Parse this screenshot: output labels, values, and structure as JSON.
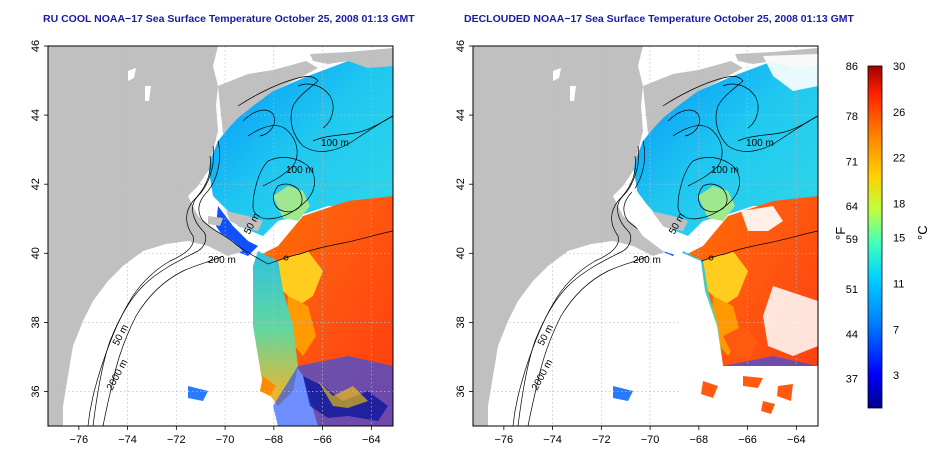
{
  "panels": [
    {
      "title": "RU COOL NOAA−17 Sea Surface Temperature October 25, 2008 01:13 GMT",
      "x_ticks": [
        "−76",
        "−74",
        "−72",
        "−70",
        "−68",
        "−66",
        "−64"
      ],
      "y_ticks": [
        "46",
        "44",
        "42",
        "40",
        "38",
        "36"
      ],
      "labels": {
        "m100a": "100 m",
        "m100b": "100 m",
        "m50a": "50 m",
        "m200": "200 m",
        "m50b": "50 m",
        "m2000": "2000 m"
      },
      "clouds_removed": false
    },
    {
      "title": "DECLOUDED NOAA−17 Sea Surface Temperature October 25, 2008 01:13 GMT",
      "x_ticks": [
        "−76",
        "−74",
        "−72",
        "−70",
        "−68",
        "−66",
        "−64"
      ],
      "y_ticks": [
        "46",
        "44",
        "42",
        "40",
        "38",
        "36"
      ],
      "labels": {
        "m100a": "100 m",
        "m100b": "100 m",
        "m50a": "50 m",
        "m200": "200 m",
        "m50b": "50 m",
        "m2000": "2000 m"
      },
      "clouds_removed": true
    }
  ],
  "colorbar": {
    "fahrenheit_label": "°F",
    "celsius_label": "°C",
    "fahrenheit_ticks": [
      "86",
      "78",
      "71",
      "64",
      "59",
      "51",
      "44",
      "37"
    ],
    "celsius_ticks": [
      "30",
      "26",
      "22",
      "18",
      "15",
      "11",
      "7",
      "3"
    ],
    "range_c": [
      0,
      30
    ],
    "colors": [
      "#00008c",
      "#0000ff",
      "#0080ff",
      "#00d0ff",
      "#40ffbf",
      "#c0ff40",
      "#ffd000",
      "#ff8000",
      "#ff2000",
      "#a00000"
    ]
  },
  "colors": {
    "land": "#c0c0c0",
    "frame": "#000000",
    "grid": "#bbbbbb",
    "contour": "#000000"
  }
}
